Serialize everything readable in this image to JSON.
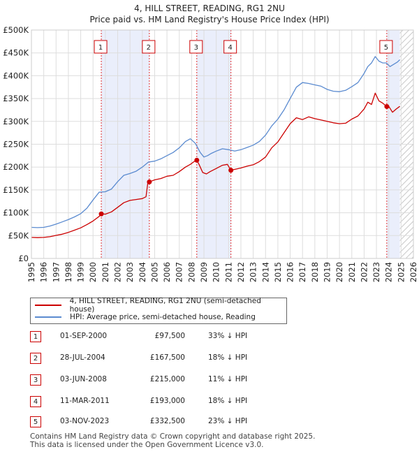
{
  "chart_data": {
    "type": "line",
    "title": "4, HILL STREET, READING, RG1 2NU",
    "subtitle": "Price paid vs. HM Land Registry's House Price Index (HPI)",
    "xlim": [
      1995,
      2026
    ],
    "ylim": [
      0,
      500000
    ],
    "x_ticks": [
      "1995",
      "1996",
      "1997",
      "1998",
      "1999",
      "2000",
      "2001",
      "2002",
      "2003",
      "2004",
      "2005",
      "2006",
      "2007",
      "2008",
      "2009",
      "2010",
      "2011",
      "2012",
      "2013",
      "2014",
      "2015",
      "2016",
      "2017",
      "2018",
      "2019",
      "2020",
      "2021",
      "2022",
      "2023",
      "2024",
      "2025",
      "2026"
    ],
    "y_ticks": [
      {
        "value": 0,
        "label": "£0"
      },
      {
        "value": 50000,
        "label": "£50K"
      },
      {
        "value": 100000,
        "label": "£100K"
      },
      {
        "value": 150000,
        "label": "£150K"
      },
      {
        "value": 200000,
        "label": "£200K"
      },
      {
        "value": 250000,
        "label": "£250K"
      },
      {
        "value": 300000,
        "label": "£300K"
      },
      {
        "value": 350000,
        "label": "£350K"
      },
      {
        "value": 400000,
        "label": "£400K"
      },
      {
        "value": 450000,
        "label": "£450K"
      },
      {
        "value": 500000,
        "label": "£500K"
      }
    ],
    "series": [
      {
        "name": "4, HILL STREET, READING, RG1 2NU (semi-detached house)",
        "color": "#cc0000",
        "x": [
          1995.0,
          1995.5,
          1996.0,
          1996.5,
          1997.0,
          1997.5,
          1998.0,
          1998.5,
          1999.0,
          1999.5,
          2000.0,
          2000.5,
          2000.67,
          2001.0,
          2001.5,
          2002.0,
          2002.5,
          2003.0,
          2003.5,
          2004.0,
          2004.3,
          2004.45,
          2004.57,
          2004.8,
          2005.0,
          2005.5,
          2006.0,
          2006.5,
          2007.0,
          2007.5,
          2007.9,
          2008.2,
          2008.42,
          2008.6,
          2008.9,
          2009.2,
          2009.5,
          2010.0,
          2010.5,
          2010.9,
          2011.19,
          2011.5,
          2012.0,
          2012.5,
          2013.0,
          2013.5,
          2014.0,
          2014.5,
          2015.0,
          2015.5,
          2016.0,
          2016.5,
          2017.0,
          2017.5,
          2018.0,
          2018.5,
          2019.0,
          2019.5,
          2020.0,
          2020.5,
          2021.0,
          2021.5,
          2022.0,
          2022.3,
          2022.6,
          2022.9,
          2023.2,
          2023.5,
          2023.84,
          2024.0,
          2024.3,
          2024.6,
          2024.9
        ],
        "y": [
          46000,
          45500,
          46000,
          47500,
          50500,
          53000,
          57000,
          62000,
          67000,
          74000,
          82000,
          92000,
          97500,
          97000,
          102000,
          112000,
          122000,
          127000,
          129000,
          131000,
          135000,
          166000,
          167500,
          170000,
          172000,
          175000,
          180000,
          182000,
          190000,
          200000,
          206000,
          212000,
          215000,
          206000,
          188000,
          185000,
          190000,
          197000,
          204000,
          206000,
          193000,
          195000,
          198000,
          202000,
          205000,
          212000,
          222000,
          242000,
          255000,
          275000,
          295000,
          308000,
          304000,
          310000,
          306000,
          303000,
          300000,
          297000,
          295000,
          296000,
          305000,
          312000,
          327000,
          342000,
          337000,
          362000,
          345000,
          340000,
          332500,
          333000,
          320000,
          327000,
          333000
        ]
      },
      {
        "name": "HPI: Average price, semi-detached house, Reading",
        "color": "#5b8bd0",
        "x": [
          1995.0,
          1995.5,
          1996.0,
          1996.5,
          1997.0,
          1997.5,
          1998.0,
          1998.5,
          1999.0,
          1999.5,
          2000.0,
          2000.5,
          2001.0,
          2001.5,
          2002.0,
          2002.5,
          2003.0,
          2003.5,
          2004.0,
          2004.5,
          2005.0,
          2005.5,
          2006.0,
          2006.5,
          2007.0,
          2007.5,
          2007.9,
          2008.3,
          2008.7,
          2009.0,
          2009.3,
          2009.6,
          2010.0,
          2010.5,
          2011.0,
          2011.5,
          2012.0,
          2012.5,
          2013.0,
          2013.5,
          2014.0,
          2014.5,
          2015.0,
          2015.5,
          2016.0,
          2016.5,
          2017.0,
          2017.5,
          2018.0,
          2018.5,
          2019.0,
          2019.5,
          2020.0,
          2020.5,
          2021.0,
          2021.5,
          2022.0,
          2022.3,
          2022.6,
          2022.9,
          2023.2,
          2023.5,
          2023.8,
          2024.1,
          2024.4,
          2024.7,
          2024.9
        ],
        "y": [
          68000,
          67500,
          68000,
          71000,
          75000,
          80000,
          85000,
          91000,
          98000,
          110000,
          128000,
          145000,
          146000,
          152000,
          168000,
          182000,
          186000,
          191000,
          200000,
          211000,
          213000,
          218000,
          225000,
          232000,
          242000,
          256000,
          262000,
          252000,
          232000,
          222000,
          225000,
          230000,
          235000,
          240000,
          238000,
          235000,
          238000,
          243000,
          248000,
          256000,
          270000,
          290000,
          305000,
          325000,
          350000,
          375000,
          385000,
          383000,
          380000,
          377000,
          370000,
          366000,
          365000,
          368000,
          376000,
          385000,
          405000,
          420000,
          428000,
          442000,
          432000,
          428000,
          428000,
          420000,
          425000,
          430000,
          435000
        ]
      }
    ],
    "transactions": [
      {
        "label": "1",
        "x": 2000.67,
        "y": 97500
      },
      {
        "label": "2",
        "x": 2004.57,
        "y": 167500
      },
      {
        "label": "3",
        "x": 2008.42,
        "y": 215000
      },
      {
        "label": "4",
        "x": 2011.19,
        "y": 193000
      },
      {
        "label": "5",
        "x": 2023.84,
        "y": 332500
      }
    ],
    "shaded_ranges": [
      [
        2000.67,
        2004.57
      ],
      [
        2008.42,
        2011.19
      ],
      [
        2023.84,
        2024.9
      ]
    ],
    "hatched_range": [
      2024.9,
      2026
    ],
    "legend_position": "below"
  },
  "legend": {
    "property_label": "4, HILL STREET, READING, RG1 2NU (semi-detached house)",
    "hpi_label": "HPI: Average price, semi-detached house, Reading"
  },
  "table": [
    {
      "num": "1",
      "date": "01-SEP-2000",
      "price": "£97,500",
      "hpi": "33% ↓ HPI"
    },
    {
      "num": "2",
      "date": "28-JUL-2004",
      "price": "£167,500",
      "hpi": "18% ↓ HPI"
    },
    {
      "num": "3",
      "date": "03-JUN-2008",
      "price": "£215,000",
      "hpi": "11% ↓ HPI"
    },
    {
      "num": "4",
      "date": "11-MAR-2011",
      "price": "£193,000",
      "hpi": "18% ↓ HPI"
    },
    {
      "num": "5",
      "date": "03-NOV-2023",
      "price": "£332,500",
      "hpi": "23% ↓ HPI"
    }
  ],
  "footer": {
    "line1": "Contains HM Land Registry data © Crown copyright and database right 2025.",
    "line2": "This data is licensed under the Open Government Licence v3.0."
  }
}
